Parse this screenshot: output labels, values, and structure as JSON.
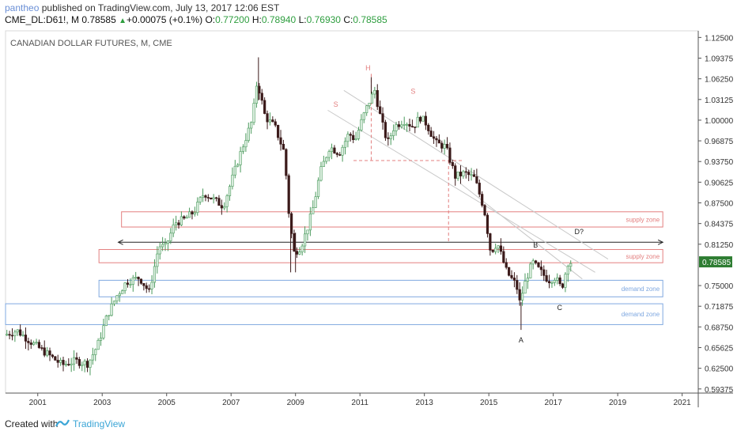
{
  "header": {
    "author": "pantheo",
    "published_text": " published on TradingView.com, July 13, 2017 12:06 EST",
    "symbol": "CME_DL:D61!, M",
    "last": "0.78585",
    "change": "+0.00075 (+0.1%)",
    "o_label": "O:",
    "o": "0.77200",
    "h_label": "H:",
    "h": "0.78940",
    "l_label": "L:",
    "l": "0.76930",
    "c_label": "C:",
    "c": "0.78585"
  },
  "footer": {
    "created_with": "Created with",
    "brand": "TradingView"
  },
  "colors": {
    "up": "#4a9a5c",
    "down": "#3b1a1a",
    "supply": "#e37f7f",
    "demand": "#7fa8e0",
    "last_price_bg": "#2e7d32"
  },
  "chart_data": {
    "type": "candlestick",
    "title": "CANADIAN DOLLAR FUTURES, M, CME",
    "y_ticks": [
      "1.12500",
      "1.09375",
      "1.06250",
      "1.03125",
      "1.00000",
      "0.96875",
      "0.93750",
      "0.90625",
      "0.87500",
      "0.84375",
      "0.81250",
      "0.78585",
      "0.75000",
      "0.71875",
      "0.68750",
      "0.65625",
      "0.62500",
      "0.59375"
    ],
    "y_range": [
      0.5875,
      1.135
    ],
    "x_ticks": [
      "2001",
      "2003",
      "2005",
      "2007",
      "2009",
      "2011",
      "2013",
      "2015",
      "2017",
      "2019",
      "2021"
    ],
    "x_range": [
      2000.0,
      2021.5
    ],
    "last_price": 0.78585,
    "path_points": [
      [
        2000.0,
        0.675
      ],
      [
        2000.4,
        0.682
      ],
      [
        2000.9,
        0.662
      ],
      [
        2001.3,
        0.648
      ],
      [
        2001.8,
        0.63
      ],
      [
        2002.2,
        0.636
      ],
      [
        2002.6,
        0.632
      ],
      [
        2002.9,
        0.66
      ],
      [
        2003.2,
        0.705
      ],
      [
        2003.5,
        0.735
      ],
      [
        2003.8,
        0.756
      ],
      [
        2004.2,
        0.762
      ],
      [
        2004.5,
        0.74
      ],
      [
        2004.8,
        0.81
      ],
      [
        2005.0,
        0.808
      ],
      [
        2005.3,
        0.845
      ],
      [
        2005.6,
        0.85
      ],
      [
        2005.9,
        0.862
      ],
      [
        2006.2,
        0.89
      ],
      [
        2006.5,
        0.88
      ],
      [
        2006.8,
        0.87
      ],
      [
        2007.0,
        0.9
      ],
      [
        2007.4,
        0.96
      ],
      [
        2007.7,
        1.0
      ],
      [
        2007.85,
        1.06
      ],
      [
        2008.1,
        1.005
      ],
      [
        2008.4,
        0.99
      ],
      [
        2008.7,
        0.95
      ],
      [
        2008.85,
        0.85
      ],
      [
        2009.0,
        0.8
      ],
      [
        2009.2,
        0.808
      ],
      [
        2009.4,
        0.835
      ],
      [
        2009.6,
        0.87
      ],
      [
        2009.8,
        0.92
      ],
      [
        2010.1,
        0.96
      ],
      [
        2010.4,
        0.95
      ],
      [
        2010.7,
        0.98
      ],
      [
        2010.9,
        0.97
      ],
      [
        2011.1,
        1.0
      ],
      [
        2011.3,
        1.025
      ],
      [
        2011.5,
        1.045
      ],
      [
        2011.7,
        1.0
      ],
      [
        2011.9,
        0.965
      ],
      [
        2012.1,
        0.99
      ],
      [
        2012.4,
        1.0
      ],
      [
        2012.7,
        0.99
      ],
      [
        2012.9,
        1.005
      ],
      [
        2013.1,
        0.995
      ],
      [
        2013.4,
        0.965
      ],
      [
        2013.7,
        0.96
      ],
      [
        2014.0,
        0.915
      ],
      [
        2014.3,
        0.92
      ],
      [
        2014.6,
        0.912
      ],
      [
        2014.9,
        0.865
      ],
      [
        2015.1,
        0.8
      ],
      [
        2015.3,
        0.815
      ],
      [
        2015.6,
        0.77
      ],
      [
        2015.9,
        0.75
      ],
      [
        2016.0,
        0.725
      ],
      [
        2016.2,
        0.76
      ],
      [
        2016.4,
        0.785
      ],
      [
        2016.7,
        0.768
      ],
      [
        2016.9,
        0.758
      ],
      [
        2017.1,
        0.763
      ],
      [
        2017.3,
        0.745
      ],
      [
        2017.5,
        0.785
      ]
    ],
    "supply_zones": [
      {
        "label": "supply zone",
        "x_start": 2003.6,
        "x_end": 2020.4,
        "y_low": 0.8385,
        "y_high": 0.8615
      },
      {
        "label": "supply zone",
        "x_start": 2002.9,
        "x_end": 2020.4,
        "y_low": 0.7845,
        "y_high": 0.8045
      }
    ],
    "demand_zones": [
      {
        "label": "demand zone",
        "x_start": 2002.9,
        "x_end": 2020.4,
        "y_low": 0.733,
        "y_high": 0.758
      },
      {
        "label": "demand zone",
        "x_start": 2000.0,
        "x_end": 2020.4,
        "y_low": 0.691,
        "y_high": 0.7225
      }
    ],
    "annotations": [
      {
        "text": "H",
        "x": 2011.25,
        "y": 1.075
      },
      {
        "text": "S",
        "x": 2010.25,
        "y": 1.02
      },
      {
        "text": "S",
        "x": 2012.65,
        "y": 1.04
      },
      {
        "text": "B",
        "x": 2016.45,
        "y": 0.8075
      },
      {
        "text": "D?",
        "x": 2017.8,
        "y": 0.8275
      },
      {
        "text": "C",
        "x": 2017.2,
        "y": 0.713
      },
      {
        "text": "A",
        "x": 2016.0,
        "y": 0.664
      }
    ]
  }
}
